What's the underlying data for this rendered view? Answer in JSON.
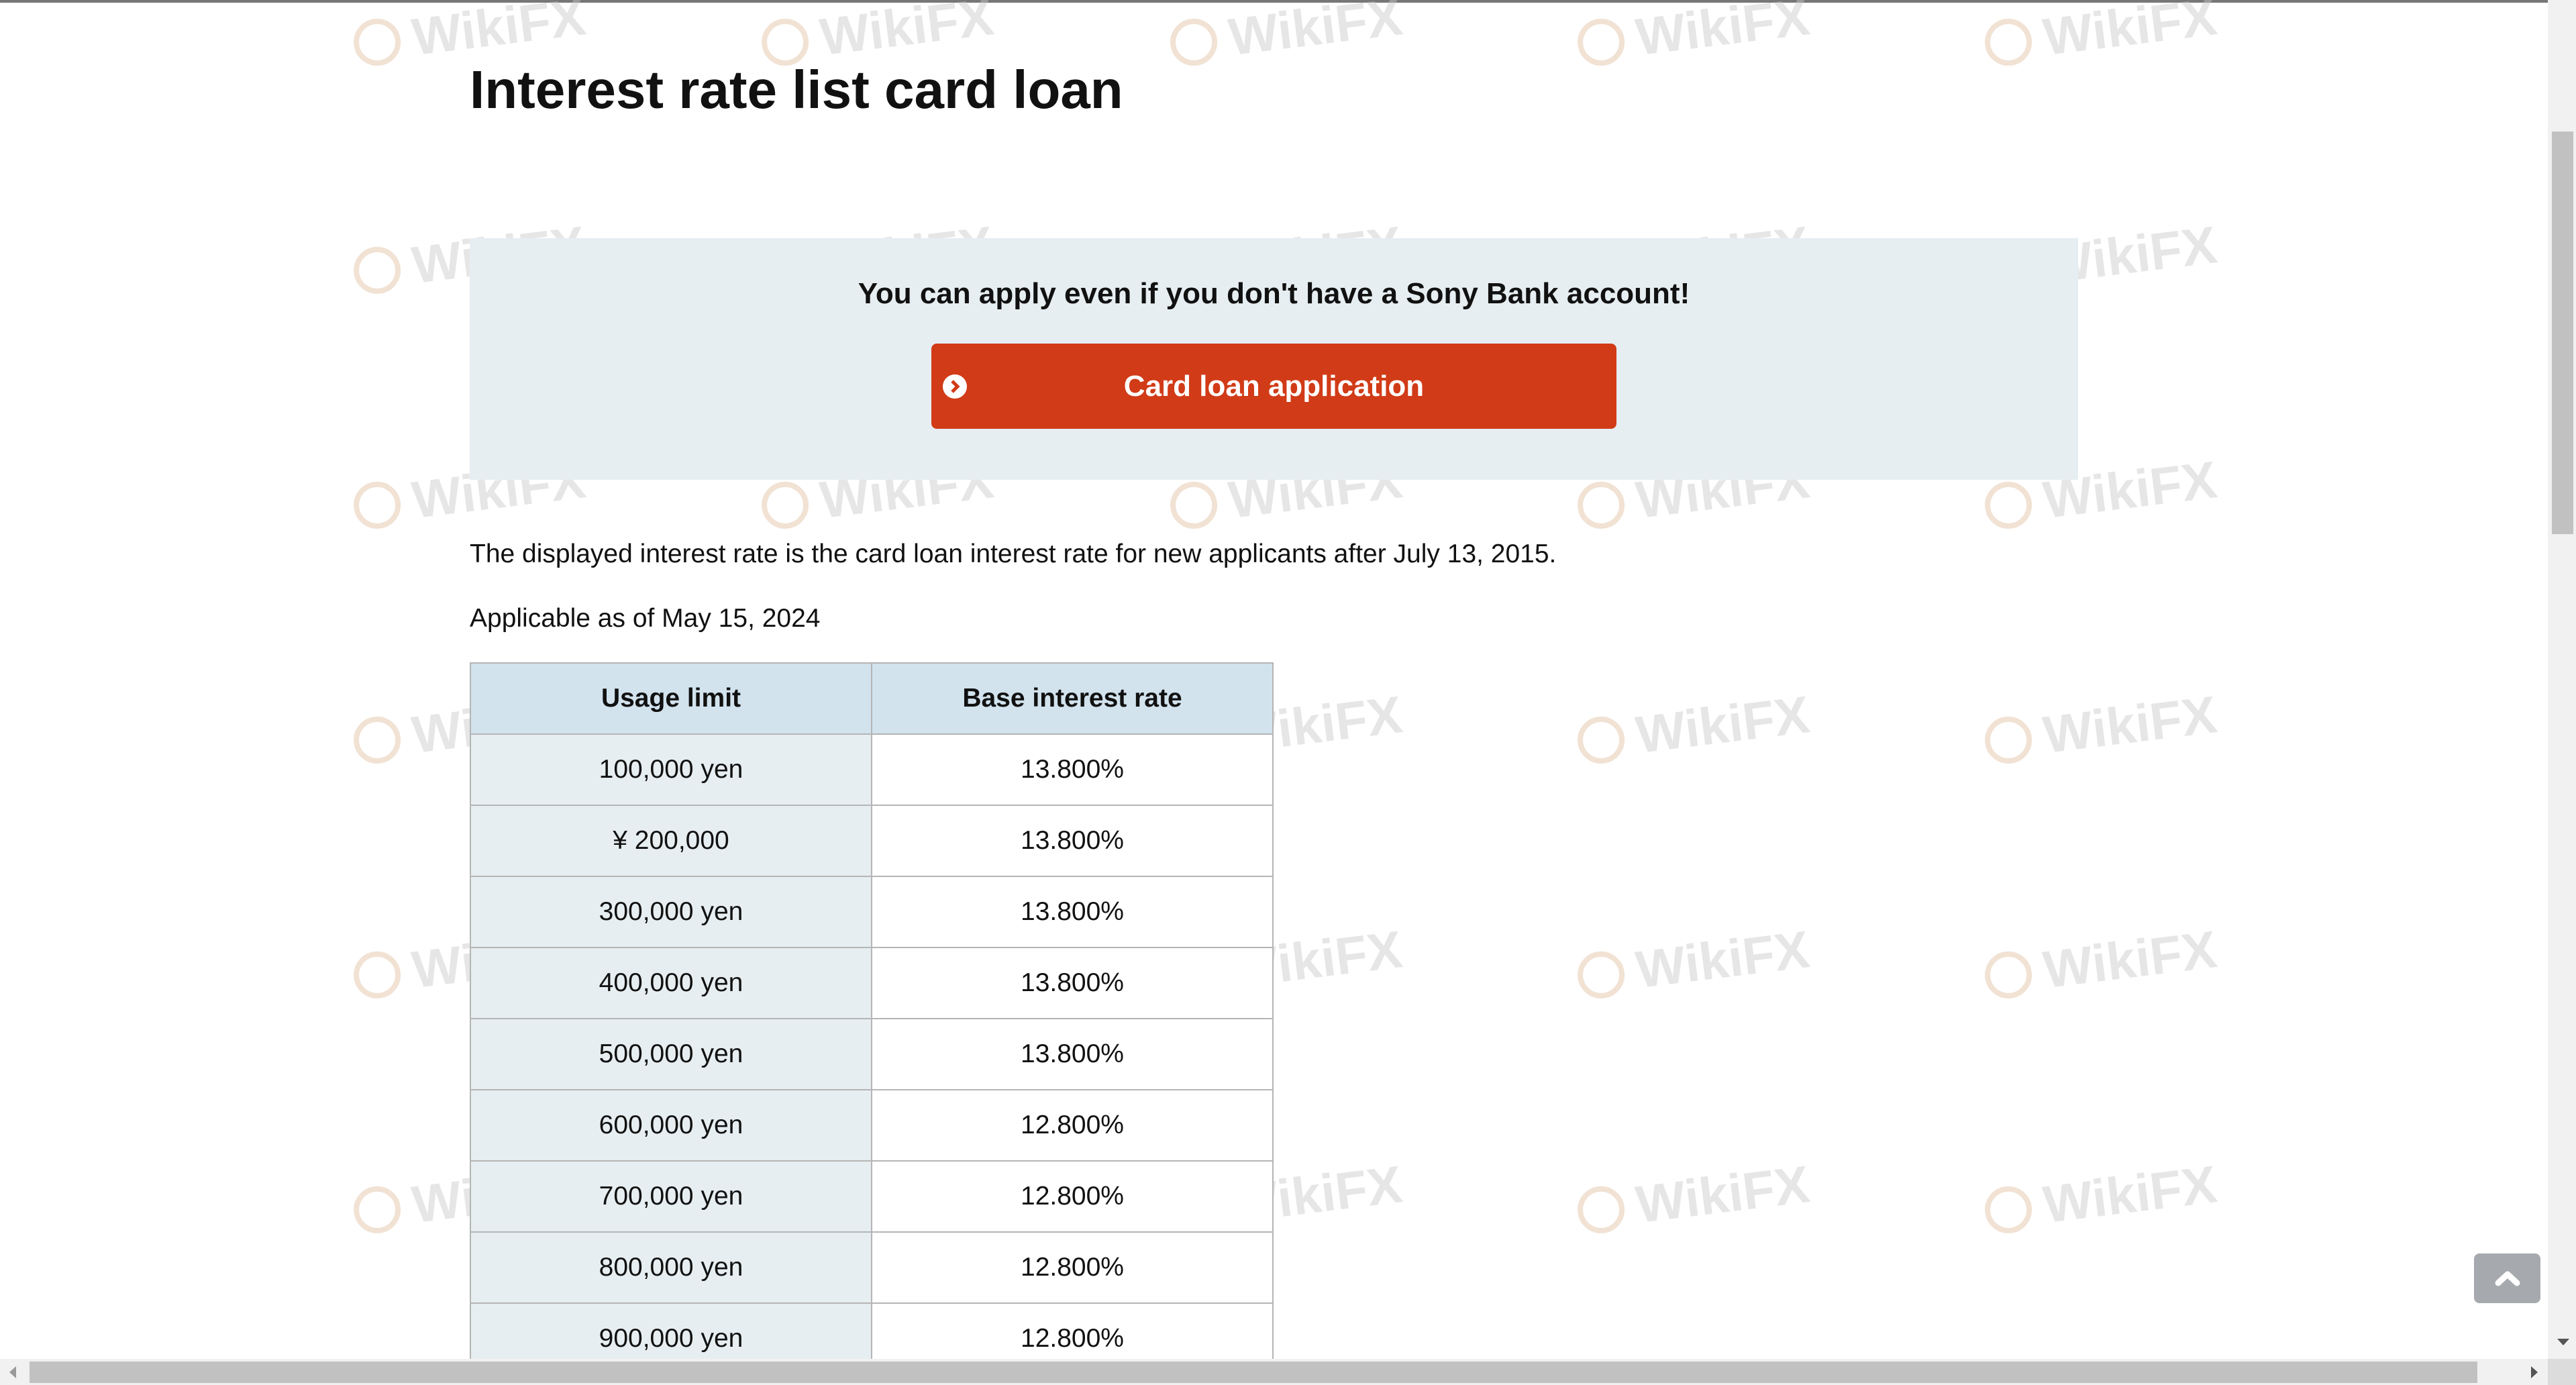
{
  "page": {
    "title": "Interest rate list card loan"
  },
  "banner": {
    "text": "You can apply even if you don't have a Sony Bank account!",
    "button_label": "Card loan application",
    "button_color": "#d13b17",
    "background": "#e6eef1"
  },
  "notes": [
    "The displayed interest rate is the card loan interest rate for new applicants after July 13, 2015.",
    "Applicable as of May 15, 2024"
  ],
  "table": {
    "headers": [
      "Usage limit",
      "Base interest rate"
    ],
    "rows": [
      [
        "100,000 yen",
        "13.800%"
      ],
      [
        "¥ 200,000",
        "13.800%"
      ],
      [
        "300,000 yen",
        "13.800%"
      ],
      [
        "400,000 yen",
        "13.800%"
      ],
      [
        "500,000 yen",
        "13.800%"
      ],
      [
        "600,000 yen",
        "12.800%"
      ],
      [
        "700,000 yen",
        "12.800%"
      ],
      [
        "800,000 yen",
        "12.800%"
      ],
      [
        "900,000 yen",
        "12.800%"
      ]
    ]
  },
  "watermark": "WikiFX",
  "icons": {
    "button": "chevron-circle-right-icon",
    "scroll_top": "chevron-up-icon"
  }
}
